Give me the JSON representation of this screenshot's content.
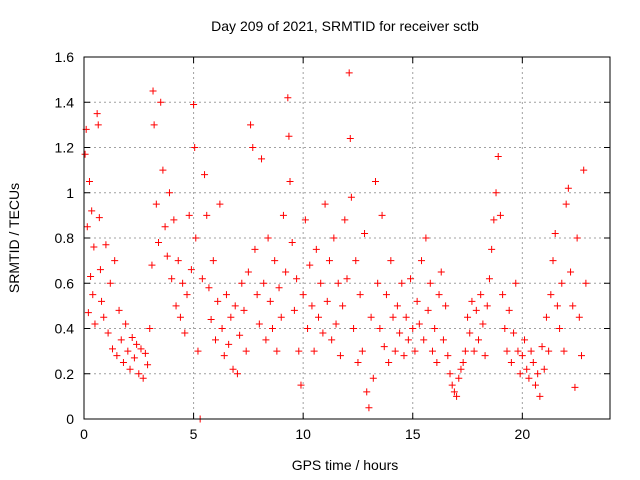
{
  "chart_data": {
    "type": "scatter",
    "title": "Day 209 of 2021, SRMTID for receiver sctb",
    "xlabel": "GPS time / hours",
    "ylabel": "SRMTID / TECUs",
    "xlim": [
      0,
      24
    ],
    "ylim": [
      0,
      1.6
    ],
    "xticks": [
      0,
      5,
      10,
      15,
      20
    ],
    "xtick_labels": [
      "0",
      "5",
      "10",
      "15",
      "20"
    ],
    "yticks": [
      0,
      0.2,
      0.4,
      0.6,
      0.8,
      1,
      1.2,
      1.4,
      1.6
    ],
    "ytick_labels": [
      "0",
      "0.2",
      "0.4",
      "0.6",
      "0.8",
      "1",
      "1.2",
      "1.4",
      "1.6"
    ],
    "grid": true,
    "marker": "+",
    "color": "#ff0000",
    "series": [
      {
        "name": "SRMTID",
        "points": [
          [
            0.05,
            1.17
          ],
          [
            0.1,
            1.28
          ],
          [
            0.15,
            0.85
          ],
          [
            0.2,
            0.47
          ],
          [
            0.25,
            1.05
          ],
          [
            0.3,
            0.63
          ],
          [
            0.35,
            0.92
          ],
          [
            0.4,
            0.55
          ],
          [
            0.45,
            0.76
          ],
          [
            0.5,
            0.42
          ],
          [
            0.6,
            1.35
          ],
          [
            0.65,
            1.3
          ],
          [
            0.7,
            0.89
          ],
          [
            0.75,
            0.66
          ],
          [
            0.8,
            0.52
          ],
          [
            0.9,
            0.45
          ],
          [
            1.0,
            0.77
          ],
          [
            1.1,
            0.38
          ],
          [
            1.2,
            0.6
          ],
          [
            1.3,
            0.31
          ],
          [
            1.4,
            0.7
          ],
          [
            1.5,
            0.28
          ],
          [
            1.6,
            0.48
          ],
          [
            1.7,
            0.35
          ],
          [
            1.8,
            0.25
          ],
          [
            1.9,
            0.42
          ],
          [
            2.0,
            0.3
          ],
          [
            2.1,
            0.22
          ],
          [
            2.2,
            0.36
          ],
          [
            2.3,
            0.27
          ],
          [
            2.4,
            0.33
          ],
          [
            2.5,
            0.2
          ],
          [
            2.6,
            0.31
          ],
          [
            2.7,
            0.18
          ],
          [
            2.8,
            0.29
          ],
          [
            2.9,
            0.24
          ],
          [
            3.0,
            0.4
          ],
          [
            3.1,
            0.68
          ],
          [
            3.15,
            1.45
          ],
          [
            3.2,
            1.3
          ],
          [
            3.3,
            0.95
          ],
          [
            3.4,
            0.78
          ],
          [
            3.5,
            1.4
          ],
          [
            3.6,
            1.1
          ],
          [
            3.7,
            0.85
          ],
          [
            3.8,
            0.72
          ],
          [
            3.9,
            1.0
          ],
          [
            4.0,
            0.62
          ],
          [
            4.1,
            0.88
          ],
          [
            4.2,
            0.5
          ],
          [
            4.3,
            0.7
          ],
          [
            4.4,
            0.45
          ],
          [
            4.5,
            0.6
          ],
          [
            4.6,
            0.38
          ],
          [
            4.7,
            0.55
          ],
          [
            4.8,
            0.9
          ],
          [
            4.9,
            0.66
          ],
          [
            5.0,
            1.39
          ],
          [
            5.05,
            1.2
          ],
          [
            5.1,
            0.8
          ],
          [
            5.2,
            0.3
          ],
          [
            5.3,
            0.0
          ],
          [
            5.4,
            0.62
          ],
          [
            5.5,
            1.08
          ],
          [
            5.6,
            0.9
          ],
          [
            5.7,
            0.58
          ],
          [
            5.8,
            0.44
          ],
          [
            5.9,
            0.7
          ],
          [
            6.0,
            0.35
          ],
          [
            6.1,
            0.52
          ],
          [
            6.2,
            0.95
          ],
          [
            6.3,
            0.4
          ],
          [
            6.4,
            0.28
          ],
          [
            6.5,
            0.55
          ],
          [
            6.6,
            0.33
          ],
          [
            6.7,
            0.45
          ],
          [
            6.8,
            0.22
          ],
          [
            6.9,
            0.5
          ],
          [
            7.0,
            0.2
          ],
          [
            7.1,
            0.37
          ],
          [
            7.2,
            0.6
          ],
          [
            7.3,
            0.48
          ],
          [
            7.4,
            0.3
          ],
          [
            7.5,
            0.65
          ],
          [
            7.6,
            1.3
          ],
          [
            7.7,
            1.2
          ],
          [
            7.8,
            0.75
          ],
          [
            7.9,
            0.55
          ],
          [
            8.0,
            0.42
          ],
          [
            8.1,
            1.15
          ],
          [
            8.2,
            0.6
          ],
          [
            8.3,
            0.35
          ],
          [
            8.4,
            0.8
          ],
          [
            8.5,
            0.52
          ],
          [
            8.6,
            0.4
          ],
          [
            8.7,
            0.7
          ],
          [
            8.8,
            0.3
          ],
          [
            8.9,
            0.58
          ],
          [
            9.0,
            0.45
          ],
          [
            9.1,
            0.9
          ],
          [
            9.2,
            0.65
          ],
          [
            9.3,
            1.42
          ],
          [
            9.35,
            1.25
          ],
          [
            9.4,
            1.05
          ],
          [
            9.5,
            0.78
          ],
          [
            9.6,
            0.48
          ],
          [
            9.7,
            0.62
          ],
          [
            9.8,
            0.3
          ],
          [
            9.9,
            0.15
          ],
          [
            10.0,
            0.55
          ],
          [
            10.1,
            0.88
          ],
          [
            10.2,
            0.4
          ],
          [
            10.3,
            0.68
          ],
          [
            10.4,
            0.5
          ],
          [
            10.5,
            0.3
          ],
          [
            10.6,
            0.75
          ],
          [
            10.7,
            0.45
          ],
          [
            10.8,
            0.6
          ],
          [
            10.9,
            0.38
          ],
          [
            11.0,
            0.95
          ],
          [
            11.1,
            0.52
          ],
          [
            11.2,
            0.7
          ],
          [
            11.3,
            0.35
          ],
          [
            11.4,
            0.8
          ],
          [
            11.5,
            0.42
          ],
          [
            11.6,
            0.6
          ],
          [
            11.7,
            0.28
          ],
          [
            11.8,
            0.5
          ],
          [
            11.9,
            0.88
          ],
          [
            12.0,
            0.62
          ],
          [
            12.1,
            1.53
          ],
          [
            12.15,
            1.24
          ],
          [
            12.2,
            0.98
          ],
          [
            12.3,
            0.4
          ],
          [
            12.4,
            0.7
          ],
          [
            12.5,
            0.25
          ],
          [
            12.6,
            0.55
          ],
          [
            12.7,
            0.3
          ],
          [
            12.8,
            0.82
          ],
          [
            12.9,
            0.12
          ],
          [
            13.0,
            0.05
          ],
          [
            13.1,
            0.45
          ],
          [
            13.2,
            0.18
          ],
          [
            13.3,
            1.05
          ],
          [
            13.4,
            0.6
          ],
          [
            13.5,
            0.4
          ],
          [
            13.6,
            0.9
          ],
          [
            13.7,
            0.32
          ],
          [
            13.8,
            0.55
          ],
          [
            13.9,
            0.25
          ],
          [
            14.0,
            0.7
          ],
          [
            14.1,
            0.45
          ],
          [
            14.2,
            0.3
          ],
          [
            14.3,
            0.5
          ],
          [
            14.4,
            0.38
          ],
          [
            14.5,
            0.6
          ],
          [
            14.6,
            0.28
          ],
          [
            14.7,
            0.45
          ],
          [
            14.8,
            0.35
          ],
          [
            14.9,
            0.62
          ],
          [
            15.0,
            0.4
          ],
          [
            15.1,
            0.3
          ],
          [
            15.2,
            0.52
          ],
          [
            15.3,
            0.42
          ],
          [
            15.4,
            0.7
          ],
          [
            15.5,
            0.35
          ],
          [
            15.6,
            0.8
          ],
          [
            15.7,
            0.48
          ],
          [
            15.8,
            0.6
          ],
          [
            15.9,
            0.3
          ],
          [
            16.0,
            0.4
          ],
          [
            16.1,
            0.25
          ],
          [
            16.2,
            0.55
          ],
          [
            16.3,
            0.65
          ],
          [
            16.4,
            0.35
          ],
          [
            16.5,
            0.5
          ],
          [
            16.6,
            0.28
          ],
          [
            16.7,
            0.2
          ],
          [
            16.8,
            0.15
          ],
          [
            16.9,
            0.12
          ],
          [
            17.0,
            0.1
          ],
          [
            17.1,
            0.18
          ],
          [
            17.2,
            0.22
          ],
          [
            17.3,
            0.25
          ],
          [
            17.4,
            0.3
          ],
          [
            17.5,
            0.45
          ],
          [
            17.6,
            0.38
          ],
          [
            17.7,
            0.52
          ],
          [
            17.8,
            0.3
          ],
          [
            17.9,
            0.48
          ],
          [
            18.0,
            0.35
          ],
          [
            18.1,
            0.55
          ],
          [
            18.2,
            0.42
          ],
          [
            18.3,
            0.28
          ],
          [
            18.4,
            0.5
          ],
          [
            18.5,
            0.62
          ],
          [
            18.6,
            0.75
          ],
          [
            18.7,
            0.88
          ],
          [
            18.8,
            1.0
          ],
          [
            18.9,
            1.16
          ],
          [
            19.0,
            0.9
          ],
          [
            19.1,
            0.55
          ],
          [
            19.2,
            0.4
          ],
          [
            19.3,
            0.3
          ],
          [
            19.4,
            0.48
          ],
          [
            19.5,
            0.25
          ],
          [
            19.6,
            0.38
          ],
          [
            19.7,
            0.6
          ],
          [
            19.8,
            0.3
          ],
          [
            19.9,
            0.2
          ],
          [
            20.0,
            0.28
          ],
          [
            20.1,
            0.35
          ],
          [
            20.2,
            0.22
          ],
          [
            20.3,
            0.18
          ],
          [
            20.4,
            0.3
          ],
          [
            20.5,
            0.25
          ],
          [
            20.6,
            0.15
          ],
          [
            20.7,
            0.2
          ],
          [
            20.8,
            0.1
          ],
          [
            20.9,
            0.32
          ],
          [
            21.0,
            0.22
          ],
          [
            21.1,
            0.45
          ],
          [
            21.2,
            0.3
          ],
          [
            21.3,
            0.55
          ],
          [
            21.4,
            0.7
          ],
          [
            21.5,
            0.82
          ],
          [
            21.6,
            0.5
          ],
          [
            21.7,
            0.4
          ],
          [
            21.8,
            0.6
          ],
          [
            21.9,
            0.3
          ],
          [
            22.0,
            0.95
          ],
          [
            22.1,
            1.02
          ],
          [
            22.2,
            0.65
          ],
          [
            22.3,
            0.5
          ],
          [
            22.4,
            0.14
          ],
          [
            22.5,
            0.8
          ],
          [
            22.6,
            0.45
          ],
          [
            22.7,
            0.28
          ],
          [
            22.8,
            1.1
          ],
          [
            22.9,
            0.6
          ]
        ]
      }
    ]
  }
}
